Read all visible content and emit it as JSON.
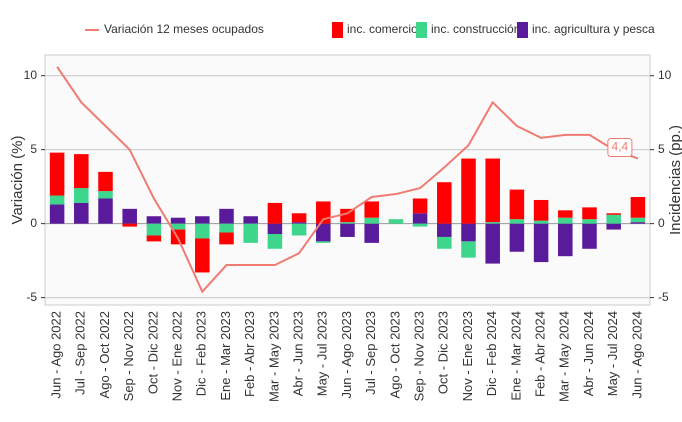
{
  "chart_data": {
    "type": "bar-line",
    "y_label": "Variación (%)",
    "y2_label": "Incidencias (pp.)",
    "categories": [
      "Jun - Ago 2022",
      "Jul - Sep 2022",
      "Ago - Oct 2022",
      "Sep - Nov 2022",
      "Oct - Dic 2022",
      "Nov - Ene 2022",
      "Dic - Feb 2023",
      "Ene - Mar 2023",
      "Feb - Abr 2023",
      "Mar - May 2023",
      "Abr - Jun 2023",
      "May - Jul 2023",
      "Jun - Ago 2023",
      "Jul - Sep 2023",
      "Ago - Oct 2023",
      "Sep - Nov 2023",
      "Oct - Dic 2023",
      "Nov - Ene 2023",
      "Dic - Feb 2024",
      "Ene - Mar 2024",
      "Feb - Abr 2024",
      "Mar - May 2024",
      "Abr - Jun 2024",
      "May - Jul 2024",
      "Jun - Ago 2024"
    ],
    "series": [
      {
        "name": "inc. agricultura y pesca",
        "type": "bar",
        "axis": "y2",
        "color": "#5a1a9c",
        "values": [
          1.3,
          1.4,
          1.7,
          1.0,
          0.5,
          0.4,
          0.5,
          1.0,
          0.5,
          -0.7,
          0.1,
          -1.2,
          -0.9,
          -1.3,
          0,
          0.7,
          -0.9,
          -1.2,
          -2.7,
          -1.9,
          -2.6,
          -2.2,
          -1.7,
          -0.4,
          0.1
        ]
      },
      {
        "name": "inc. construcción",
        "type": "bar",
        "axis": "y2",
        "color": "#3dd68c",
        "values": [
          0.6,
          1.0,
          0.5,
          0,
          -0.8,
          -0.4,
          -1.0,
          -0.6,
          -1.3,
          -1.0,
          -0.8,
          -0.1,
          0.1,
          0.4,
          0.3,
          -0.2,
          -0.8,
          -1.1,
          0.1,
          0.3,
          0.2,
          0.4,
          0.3,
          0.6,
          0.3
        ]
      },
      {
        "name": "inc. comercio",
        "type": "bar",
        "axis": "y2",
        "color": "#ff0000",
        "values": [
          2.9,
          2.3,
          1.3,
          -0.2,
          -0.4,
          -1.0,
          -2.3,
          -0.8,
          0,
          1.4,
          0.6,
          1.5,
          0.9,
          1.1,
          0,
          1.0,
          2.8,
          4.4,
          4.3,
          2.0,
          1.4,
          0.5,
          0.8,
          0.1,
          1.4
        ]
      },
      {
        "name": "Variación 12 meses ocupados",
        "type": "line",
        "color": "#f07b72",
        "values": [
          10.6,
          8.2,
          6.6,
          5.0,
          1.7,
          -1.0,
          -4.6,
          -2.8,
          -2.8,
          -2.8,
          -2.0,
          0.3,
          0.7,
          1.8,
          2.0,
          2.4,
          3.8,
          5.3,
          8.2,
          6.6,
          5.8,
          6.0,
          6.0,
          5.0,
          4.4
        ],
        "value_labels": [
          null,
          null,
          null,
          null,
          null,
          null,
          null,
          null,
          null,
          null,
          null,
          null,
          null,
          null,
          null,
          null,
          null,
          null,
          null,
          null,
          null,
          null,
          null,
          null,
          "4,4"
        ]
      }
    ],
    "ylim": [
      -5.5,
      11.4
    ],
    "yticks": [
      -5,
      0,
      5,
      10
    ],
    "y2lim": [
      -5.5,
      11.4
    ],
    "y2ticks": [
      -5,
      0,
      5,
      10
    ],
    "grid": true
  }
}
